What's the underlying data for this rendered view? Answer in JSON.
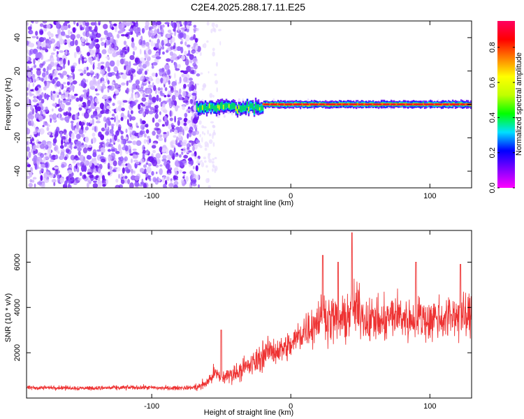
{
  "title": "C2E4.2025.288.17.11.E25",
  "chart_data": [
    {
      "type": "heatmap",
      "name": "spectrogram",
      "xlabel": "Height of straight line (km)",
      "ylabel": "Frequency (Hz)",
      "xlim": [
        -190,
        130
      ],
      "ylim": [
        -50,
        50
      ],
      "xticks": [
        -100,
        0,
        100
      ],
      "xtick_labels": [
        "-100",
        "0",
        "100"
      ],
      "yticks": [
        -40,
        -20,
        0,
        20,
        40
      ],
      "ytick_labels": [
        "-40",
        "-20",
        "0",
        "20",
        "40"
      ],
      "noise_region_x": [
        -190,
        -68
      ],
      "onset_x": -68,
      "carrier_frequency": 0,
      "colorbar": {
        "label": "Normalized spectral amplitude",
        "range": [
          0,
          0.95
        ],
        "ticks": [
          0,
          0.2,
          0.4,
          0.6,
          0.8
        ],
        "tick_labels": [
          "0.0",
          "0.2",
          "0.4",
          "0.6",
          "0.8"
        ],
        "colors": [
          "#ff00ff",
          "#8000ff",
          "#0000ff",
          "#00e0ff",
          "#00ff00",
          "#c0ff00",
          "#ffff00",
          "#ff8000",
          "#ff0000",
          "#ff0060"
        ]
      }
    },
    {
      "type": "line",
      "name": "snr",
      "xlabel": "Height of straight line (km)",
      "ylabel": "SNR (10 * v/v)",
      "xlim": [
        -190,
        130
      ],
      "ylim": [
        0,
        7400
      ],
      "xticks": [
        -100,
        0,
        100
      ],
      "xtick_labels": [
        "-100",
        "0",
        "100"
      ],
      "yticks": [
        2000,
        4000,
        6000
      ],
      "ytick_labels": [
        "2000",
        "4000",
        "6000"
      ],
      "color": "#ee3333",
      "x": [
        -190,
        -170,
        -150,
        -130,
        -110,
        -90,
        -70,
        -65,
        -60,
        -55,
        -50,
        -45,
        -40,
        -35,
        -30,
        -25,
        -20,
        -15,
        -10,
        -5,
        0,
        5,
        10,
        15,
        20,
        25,
        30,
        35,
        40,
        45,
        50,
        55,
        60,
        65,
        70,
        75,
        80,
        85,
        90,
        95,
        100,
        105,
        110,
        115,
        120,
        125,
        130
      ],
      "values": [
        450,
        460,
        440,
        450,
        470,
        440,
        460,
        520,
        700,
        1100,
        900,
        1000,
        1100,
        1300,
        1400,
        1600,
        1900,
        2100,
        2100,
        2200,
        2300,
        2700,
        3000,
        3200,
        3500,
        3600,
        3500,
        3400,
        3500,
        4000,
        3800,
        3400,
        3500,
        3300,
        3500,
        3700,
        3600,
        3400,
        3700,
        3500,
        3400,
        3600,
        3500,
        3600,
        3700,
        3500,
        3600
      ],
      "peaks": [
        {
          "x": -50,
          "y": 3000
        },
        {
          "x": 23,
          "y": 6300
        },
        {
          "x": 44,
          "y": 7300
        },
        {
          "x": 34,
          "y": 6000
        },
        {
          "x": 90,
          "y": 6000
        },
        {
          "x": 122,
          "y": 5900
        }
      ]
    }
  ]
}
